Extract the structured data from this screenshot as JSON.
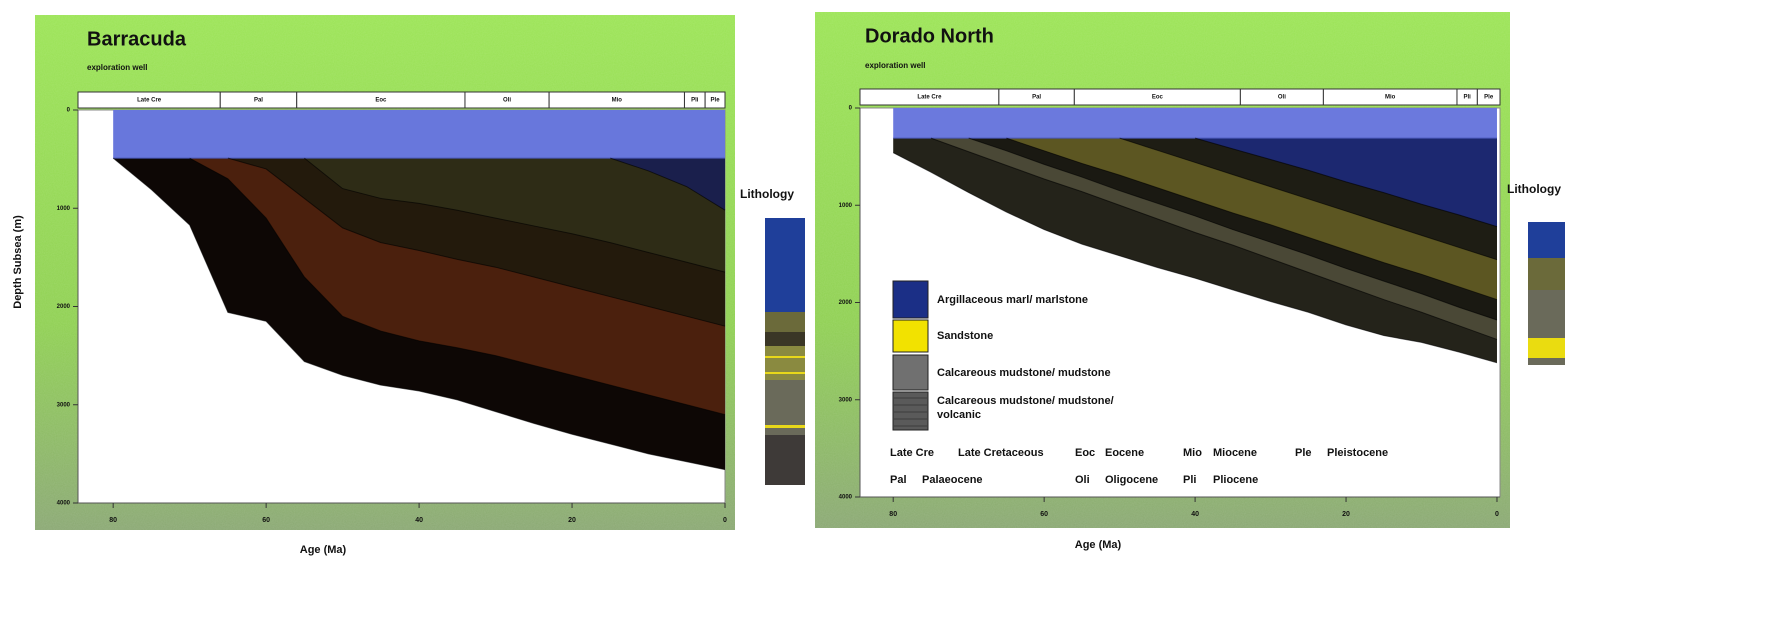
{
  "chart_data": [
    {
      "type": "area",
      "title": "Barracuda",
      "subtitle": "exploration well",
      "xlabel": "Age (Ma)",
      "ylabel": "Depth Subsea (m)",
      "legend_title": "Lithology",
      "x": [
        80,
        75,
        70,
        65,
        60,
        55,
        50,
        45,
        40,
        35,
        30,
        25,
        20,
        15,
        10,
        5,
        0
      ],
      "series": [
        {
          "color": "#6877dc",
          "values": [
            490,
            490,
            490,
            490,
            490,
            490,
            490,
            490,
            490,
            490,
            490,
            490,
            490,
            490,
            490,
            490,
            490
          ]
        },
        {
          "color": "#1a1f4c",
          "values": [
            null,
            null,
            null,
            null,
            null,
            null,
            null,
            null,
            null,
            null,
            null,
            null,
            null,
            490,
            620,
            780,
            1020
          ]
        },
        {
          "color": "#2e2c16",
          "values": [
            null,
            null,
            null,
            null,
            null,
            490,
            800,
            900,
            950,
            1020,
            1100,
            1180,
            1260,
            1350,
            1450,
            1550,
            1650
          ]
        },
        {
          "color": "#231a0c",
          "values": [
            null,
            null,
            null,
            490,
            600,
            900,
            1200,
            1350,
            1430,
            1520,
            1600,
            1700,
            1800,
            1900,
            2000,
            2100,
            2200
          ]
        },
        {
          "color": "#4b200d",
          "values": [
            null,
            null,
            490,
            700,
            1100,
            1700,
            2100,
            2250,
            2350,
            2420,
            2500,
            2600,
            2700,
            2800,
            2900,
            3000,
            3100
          ]
        },
        {
          "color": "#0d0705",
          "values": [
            490,
            810,
            1170,
            2060,
            2150,
            2560,
            2700,
            2800,
            2860,
            2950,
            3070,
            3190,
            3300,
            3400,
            3500,
            3580,
            3660
          ]
        }
      ],
      "xlim": [
        84.6,
        0
      ],
      "xticks": [
        80,
        60,
        40,
        20,
        0
      ],
      "ylim": [
        0,
        4000
      ],
      "yticks": [
        0,
        1000,
        2000,
        3000,
        4000
      ],
      "timescale": {
        "labels": [
          "Late Cre",
          "Pal",
          "Eoc",
          "Oli",
          "Mio",
          "Pli",
          "Ple"
        ],
        "bounds": [
          66,
          56,
          34,
          23,
          5.3,
          2.6
        ]
      }
    },
    {
      "type": "area",
      "title": "Dorado North",
      "subtitle": "exploration well",
      "xlabel": "Age (Ma)",
      "legend_title": "Lithology",
      "x": [
        80,
        75,
        70,
        65,
        60,
        55,
        50,
        45,
        40,
        35,
        30,
        25,
        20,
        15,
        10,
        5,
        0
      ],
      "series": [
        {
          "color": "#6b79dd",
          "values": [
            310,
            310,
            310,
            310,
            310,
            310,
            310,
            310,
            310,
            310,
            310,
            310,
            310,
            310,
            310,
            310,
            310
          ]
        },
        {
          "color": "#1c2870",
          "values": [
            null,
            null,
            null,
            null,
            null,
            null,
            null,
            null,
            310,
            420,
            530,
            640,
            760,
            870,
            990,
            1100,
            1220
          ]
        },
        {
          "color": "#1e1d14",
          "values": [
            null,
            null,
            null,
            null,
            null,
            null,
            310,
            435,
            560,
            685,
            810,
            935,
            1060,
            1185,
            1310,
            1435,
            1560
          ]
        },
        {
          "color": "#5c5622",
          "values": [
            null,
            null,
            null,
            310,
            440,
            570,
            690,
            820,
            950,
            1080,
            1200,
            1330,
            1460,
            1590,
            1710,
            1840,
            1970
          ]
        },
        {
          "color": "#1a1912",
          "values": [
            null,
            null,
            310,
            440,
            580,
            710,
            850,
            980,
            1110,
            1250,
            1380,
            1510,
            1650,
            1780,
            1910,
            2050,
            2180
          ]
        },
        {
          "color": "#4a4836",
          "values": [
            null,
            310,
            450,
            590,
            730,
            860,
            1000,
            1140,
            1280,
            1410,
            1550,
            1690,
            1830,
            1970,
            2100,
            2240,
            2380
          ]
        },
        {
          "color": "#24231a",
          "values": [
            460,
            660,
            870,
            1070,
            1250,
            1400,
            1520,
            1640,
            1750,
            1870,
            1990,
            2100,
            2230,
            2340,
            2410,
            2510,
            2620
          ]
        }
      ],
      "xlim": [
        84.4,
        -0.4
      ],
      "xticks": [
        80,
        60,
        40,
        20,
        0
      ],
      "ylim": [
        0,
        4000
      ],
      "yticks": [
        0,
        1000,
        2000,
        3000,
        4000
      ],
      "timescale": {
        "labels": [
          "Late Cre",
          "Pal",
          "Eoc",
          "Oli",
          "Mio",
          "Pli",
          "Ple"
        ],
        "bounds": [
          66,
          56,
          34,
          23,
          5.3,
          2.6
        ]
      }
    }
  ],
  "lithology_legend": [
    "Argillaceous marl/ marlstone",
    "Sandstone",
    "Calcareous mudstone/ mudstone",
    "Calcareous mudstone/ mudstone/ volcanic"
  ],
  "abbreviations": [
    {
      "abbr": "Late Cre",
      "name": "Late Cretaceous"
    },
    {
      "abbr": "Eoc",
      "name": "Eocene"
    },
    {
      "abbr": "Mio",
      "name": "Miocene"
    },
    {
      "abbr": "Ple",
      "name": "Pleistocene"
    },
    {
      "abbr": "Pal",
      "name": "Palaeocene"
    },
    {
      "abbr": "Oli",
      "name": "Oligocene"
    },
    {
      "abbr": "Pli",
      "name": "Pliocene"
    }
  ]
}
